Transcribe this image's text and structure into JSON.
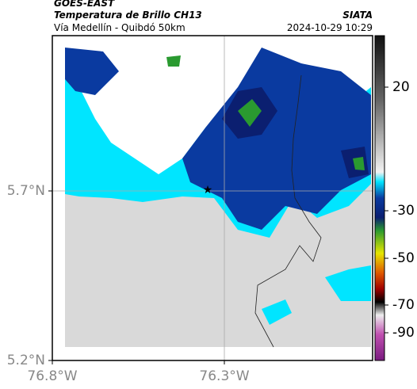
{
  "header": {
    "title": "GOES-EAST",
    "subtitle": "Temperatura de Brillo CH13",
    "route": "Vía Medellín - Quibdó 50km",
    "source": "SIATA",
    "timestamp": "2024-10-29 10:29"
  },
  "map": {
    "xticks": [
      "76.8°W",
      "76.3°W"
    ],
    "yticks": [
      "5.7°N",
      "5.2°N"
    ]
  },
  "colorbar": {
    "ticks": [
      20,
      -30,
      -50,
      -70,
      -90
    ]
  }
}
